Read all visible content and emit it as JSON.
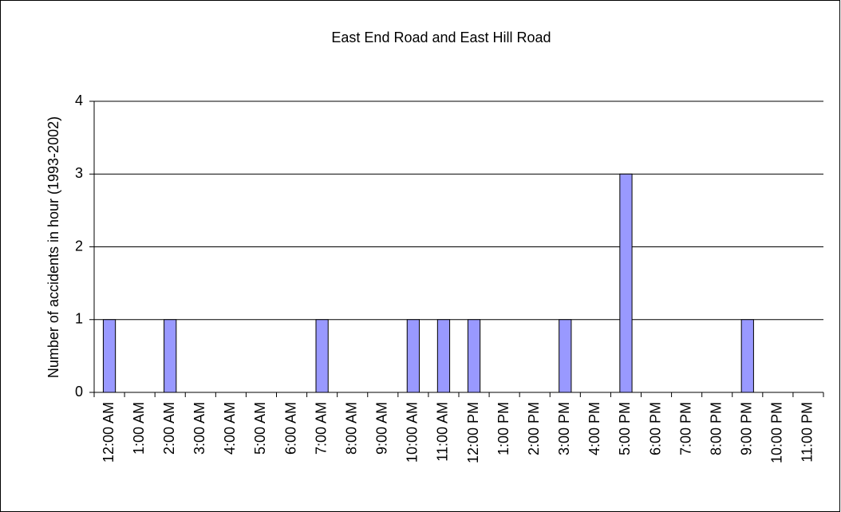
{
  "chart_data": {
    "type": "bar",
    "title": "East End Road and East Hill Road",
    "y_label": "Number of accidents in hour (1993-2002)",
    "categories": [
      "12:00 AM",
      "1:00 AM",
      "2:00 AM",
      "3:00 AM",
      "4:00 AM",
      "5:00 AM",
      "6:00 AM",
      "7:00 AM",
      "8:00 AM",
      "9:00 AM",
      "10:00 AM",
      "11:00 AM",
      "12:00 PM",
      "1:00 PM",
      "2:00 PM",
      "3:00 PM",
      "4:00 PM",
      "5:00 PM",
      "6:00 PM",
      "7:00 PM",
      "8:00 PM",
      "9:00 PM",
      "10:00 PM",
      "11:00 PM"
    ],
    "values": [
      1,
      0,
      1,
      0,
      0,
      0,
      0,
      1,
      0,
      0,
      1,
      1,
      1,
      0,
      0,
      1,
      0,
      3,
      0,
      0,
      0,
      1,
      0,
      0
    ],
    "color": "#9999ff",
    "ylim": [
      0,
      4
    ],
    "yticks": [
      0,
      1,
      2,
      3,
      4
    ],
    "grid": true
  }
}
